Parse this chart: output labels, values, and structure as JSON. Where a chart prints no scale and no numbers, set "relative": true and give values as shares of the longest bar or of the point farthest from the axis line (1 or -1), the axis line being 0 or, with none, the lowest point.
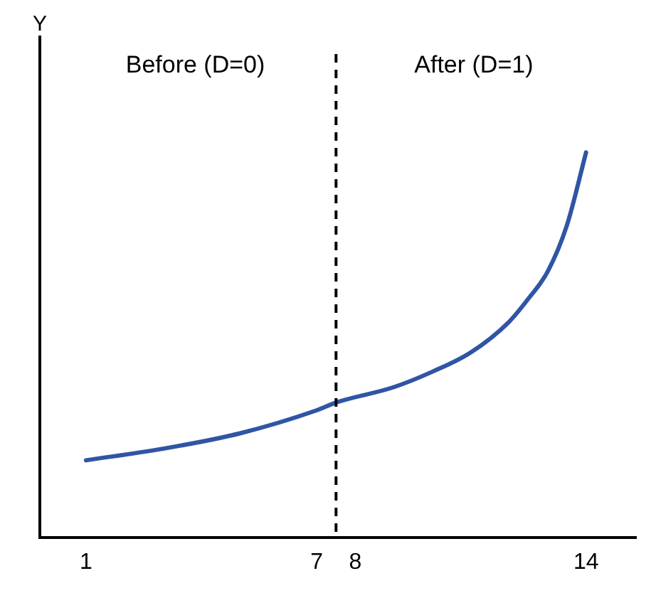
{
  "chart_data": {
    "type": "line",
    "relative": true,
    "x": [
      1,
      3,
      5,
      7,
      7.5,
      9,
      10,
      11,
      12,
      12.5,
      13,
      13.5,
      14
    ],
    "series": [
      {
        "color": "#2f55a4",
        "values": [
          0.2,
          0.23,
          0.27,
          0.33,
          0.35,
          0.39,
          0.43,
          0.48,
          0.56,
          0.62,
          0.69,
          0.81,
          1.0
        ]
      }
    ],
    "xlim": [
      -0.2,
      15.3
    ],
    "xticks": [
      1,
      7,
      8,
      14
    ],
    "ref_lines": [
      {
        "axis": "x",
        "value": 7.5,
        "color": "#000000",
        "line_style": "dashed"
      }
    ],
    "annotations": [
      "Y",
      "Before (D=0)",
      "After (D=1)"
    ],
    "grid": false,
    "legend": false,
    "marker": "none",
    "line_style": "solid"
  }
}
